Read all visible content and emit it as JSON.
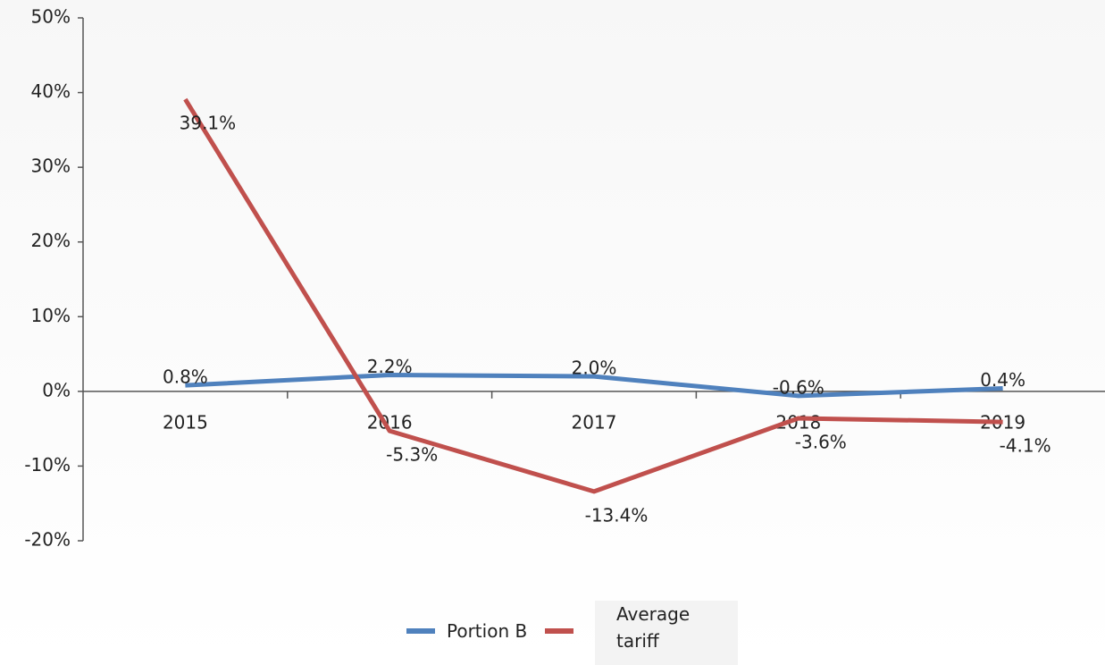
{
  "chart_data": {
    "type": "line",
    "categories": [
      "2015",
      "2016",
      "2017",
      "2018",
      "2019"
    ],
    "series": [
      {
        "name": "Portion B",
        "color": "#4f81bd",
        "values": [
          0.8,
          2.2,
          2.0,
          -0.6,
          0.4
        ],
        "value_labels": [
          "0.8%",
          "2.2%",
          "2.0%",
          "-0.6%",
          "0.4%"
        ]
      },
      {
        "name": "Average tariff",
        "color": "#c0504d",
        "values": [
          39.1,
          -5.3,
          -13.4,
          -3.6,
          -4.1
        ],
        "value_labels": [
          "39.1%",
          "-5.3%",
          "-13.4%",
          "-3.6%",
          "-4.1%"
        ]
      }
    ],
    "ylim": [
      -20,
      50
    ],
    "yticks": [
      {
        "value": -20,
        "label": "-20%"
      },
      {
        "value": -10,
        "label": "-10%"
      },
      {
        "value": 0,
        "label": "0%"
      },
      {
        "value": 10,
        "label": "10%"
      },
      {
        "value": 20,
        "label": "20%"
      },
      {
        "value": 30,
        "label": "30%"
      },
      {
        "value": 40,
        "label": "40%"
      },
      {
        "value": 50,
        "label": "50%"
      }
    ],
    "legend": "bottom"
  }
}
